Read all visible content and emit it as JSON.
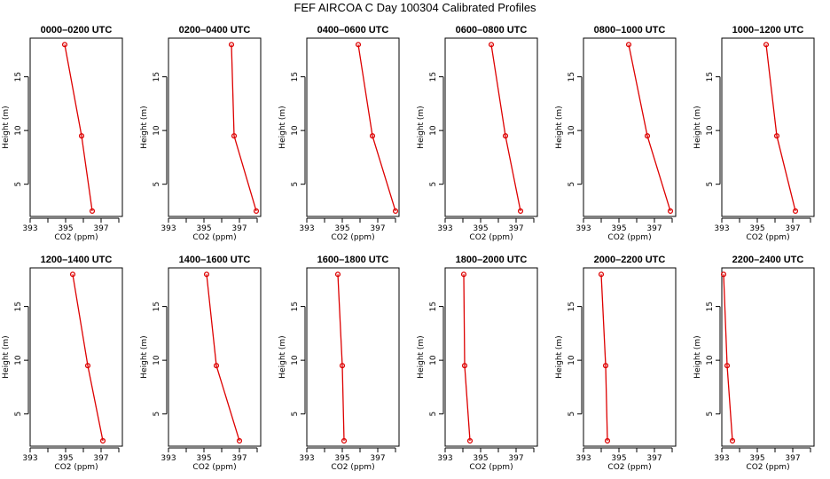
{
  "title": "FEF AIRCOA C  Day 100304  Calibrated Profiles",
  "colors": {
    "series": "#dd0000",
    "axis": "#000000"
  },
  "chart_data": {
    "type": "line",
    "xlabel": "CO2 (ppm)",
    "ylabel": "Height (m)",
    "xlim": [
      393,
      398.2
    ],
    "ylim": [
      2.0,
      18.6
    ],
    "xticks": [
      393,
      394,
      395,
      396,
      397,
      398
    ],
    "xtick_labels": [
      "393",
      "395",
      "397"
    ],
    "yticks": [
      5,
      10,
      15
    ],
    "heights": [
      18,
      9.5,
      2.5
    ],
    "panels": [
      {
        "title": "0000–0200 UTC",
        "co2": [
          394.95,
          395.9,
          396.5
        ]
      },
      {
        "title": "0200–0400 UTC",
        "co2": [
          396.55,
          396.7,
          397.95
        ]
      },
      {
        "title": "0400–0600 UTC",
        "co2": [
          395.9,
          396.7,
          398.0
        ]
      },
      {
        "title": "0600–0800 UTC",
        "co2": [
          395.6,
          396.4,
          397.25
        ]
      },
      {
        "title": "0800–1000 UTC",
        "co2": [
          395.55,
          396.6,
          397.9
        ]
      },
      {
        "title": "1000–1200 UTC",
        "co2": [
          395.5,
          396.1,
          397.15
        ]
      },
      {
        "title": "1200–1400 UTC",
        "co2": [
          395.4,
          396.25,
          397.1
        ]
      },
      {
        "title": "1400–1600 UTC",
        "co2": [
          395.15,
          395.7,
          397.0
        ]
      },
      {
        "title": "1600–1800 UTC",
        "co2": [
          394.75,
          395.0,
          395.1
        ]
      },
      {
        "title": "1800–2000 UTC",
        "co2": [
          394.05,
          394.1,
          394.4
        ]
      },
      {
        "title": "2000–2200 UTC",
        "co2": [
          394.0,
          394.25,
          394.35
        ]
      },
      {
        "title": "2200–2400 UTC",
        "co2": [
          393.1,
          393.3,
          393.6
        ]
      }
    ]
  }
}
